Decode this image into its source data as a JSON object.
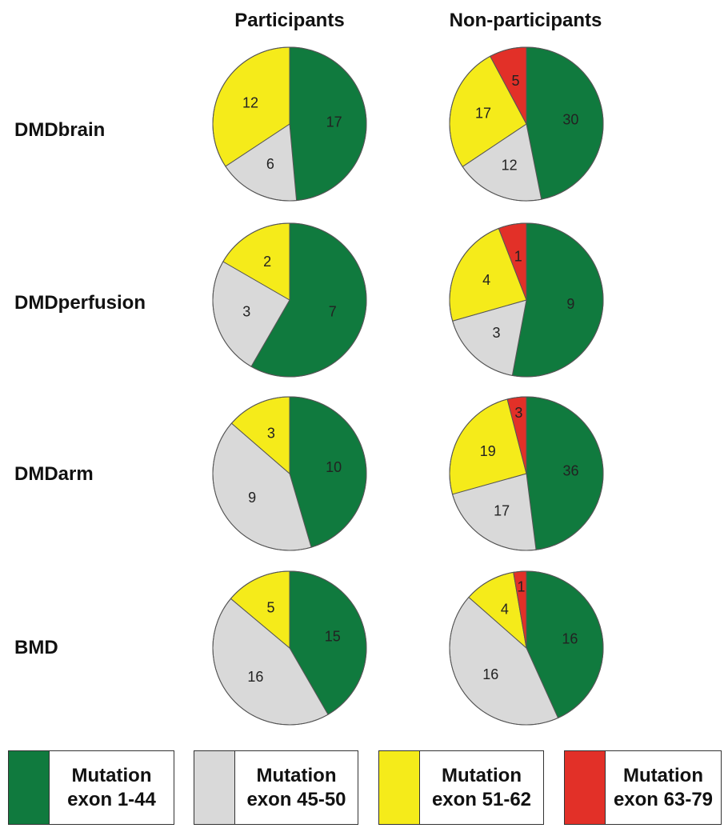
{
  "chart_data": {
    "type": "pie",
    "column_headers": [
      "Participants",
      "Non-participants"
    ],
    "row_labels": [
      "DMDbrain",
      "DMDperfusion",
      "DMDarm",
      "BMD"
    ],
    "categories": [
      "Mutation exon 1-44",
      "Mutation exon 45-50",
      "Mutation exon 51-62",
      "Mutation exon 63-79"
    ],
    "colors": [
      "#107a3e",
      "#d9d9d9",
      "#f5eb1a",
      "#e23028"
    ],
    "pies": [
      {
        "row": "DMDbrain",
        "column": "Participants",
        "values": [
          17,
          6,
          12,
          0
        ]
      },
      {
        "row": "DMDbrain",
        "column": "Non-participants",
        "values": [
          30,
          12,
          17,
          5
        ]
      },
      {
        "row": "DMDperfusion",
        "column": "Participants",
        "values": [
          7,
          3,
          2,
          0
        ]
      },
      {
        "row": "DMDperfusion",
        "column": "Non-participants",
        "values": [
          9,
          3,
          4,
          1
        ]
      },
      {
        "row": "DMDarm",
        "column": "Participants",
        "values": [
          10,
          9,
          3,
          0
        ]
      },
      {
        "row": "DMDarm",
        "column": "Non-participants",
        "values": [
          36,
          17,
          19,
          3
        ]
      },
      {
        "row": "BMD",
        "column": "Participants",
        "values": [
          15,
          16,
          5,
          0
        ]
      },
      {
        "row": "BMD",
        "column": "Non-participants",
        "values": [
          16,
          16,
          4,
          1
        ]
      }
    ],
    "legend": [
      {
        "line1": "Mutation",
        "line2": "exon 1-44",
        "color": "#107a3e"
      },
      {
        "line1": "Mutation",
        "line2": "exon 45-50",
        "color": "#d9d9d9"
      },
      {
        "line1": "Mutation",
        "line2": "exon 51-62",
        "color": "#f5eb1a"
      },
      {
        "line1": "Mutation",
        "line2": "exon 63-79",
        "color": "#e23028"
      }
    ],
    "legend_placement": "bottom"
  }
}
